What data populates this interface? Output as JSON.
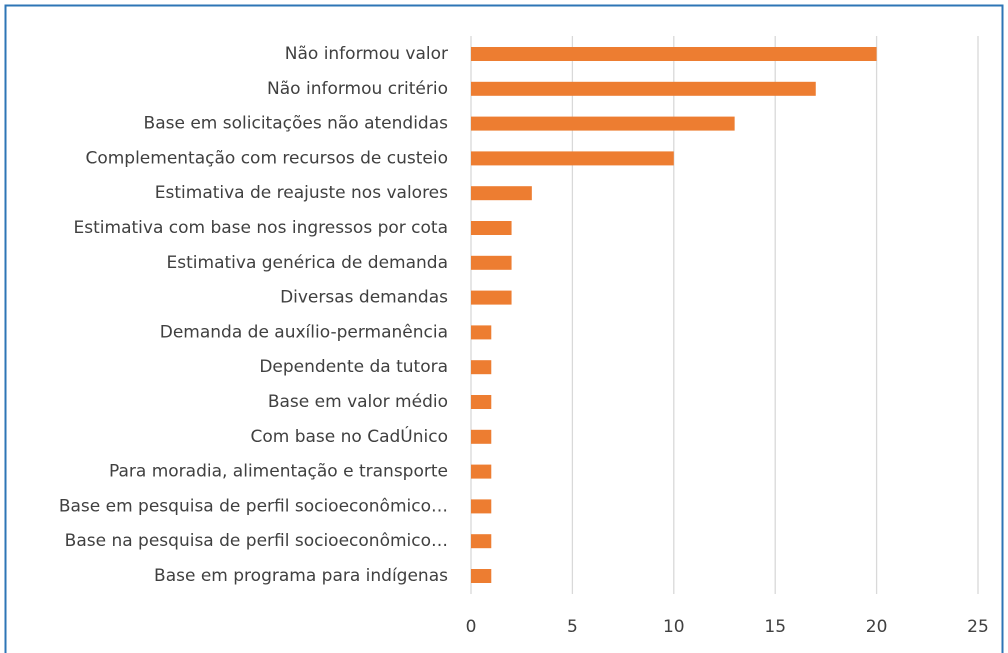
{
  "chart_data": {
    "type": "bar",
    "orientation": "horizontal",
    "categories": [
      "Não informou valor ",
      "Não informou critério",
      "Base em solicitações não atendidas",
      "Complementação com recursos de custeio",
      "Estimativa de reajuste nos valores ",
      "Estimativa com base nos ingressos por cota",
      "Estimativa genérica de demanda",
      "Diversas demandas ",
      "Demanda de auxílio-permanência",
      "Dependente da tutora",
      "Base em valor médio",
      "Com base no CadÚnico",
      "Para moradia, alimentação e transporte ",
      "Base em pesquisa de perfil socioeconômico…",
      "Base na pesquisa de perfil socioeconômico…",
      "Base em programa para indígenas"
    ],
    "values": [
      20,
      17,
      13,
      10,
      3,
      2,
      2,
      2,
      1,
      1,
      1,
      1,
      1,
      1,
      1,
      1
    ],
    "color": "#ed7d31",
    "xlim": [
      0,
      25
    ],
    "xticks": [
      0,
      5,
      10,
      15,
      20,
      25
    ],
    "grid": true
  }
}
